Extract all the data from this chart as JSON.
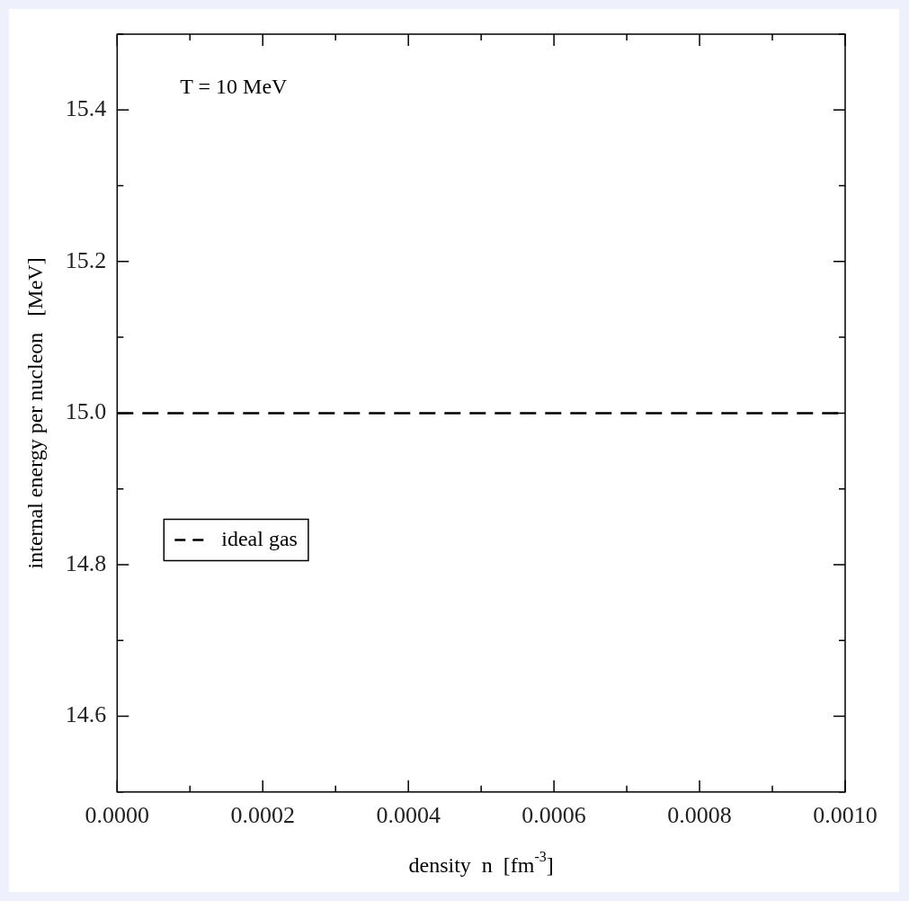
{
  "chart_data": {
    "type": "line",
    "xlabel": "density  n  [fm$^{-3}$]",
    "ylabel": "internal energy per nucleon   [MeV]",
    "annotations": [
      "T = 10 MeV"
    ],
    "series": [
      {
        "name": "ideal gas",
        "color": "#000000",
        "x": [
          0,
          0.001
        ],
        "values": [
          15,
          15
        ],
        "line_style": "dashed",
        "marker": "none"
      }
    ],
    "xlim": [
      0,
      0.001
    ],
    "ylim": [
      14.5,
      15.5
    ],
    "xticks": [
      {
        "value": 0,
        "label": "0.0000"
      },
      {
        "value": 0.0001,
        "label": null
      },
      {
        "value": 0.0002,
        "label": "0.0002"
      },
      {
        "value": 0.0003,
        "label": null
      },
      {
        "value": 0.0004,
        "label": "0.0004"
      },
      {
        "value": 0.0005,
        "label": null
      },
      {
        "value": 0.0006,
        "label": "0.0006"
      },
      {
        "value": 0.0007,
        "label": null
      },
      {
        "value": 0.0008,
        "label": "0.0008"
      },
      {
        "value": 0.0009,
        "label": null
      },
      {
        "value": 0.001,
        "label": "0.0010"
      }
    ],
    "yticks": [
      {
        "value": 14.5,
        "label": null
      },
      14.6,
      {
        "value": 14.7,
        "label": null
      },
      14.8,
      {
        "value": 14.9,
        "label": null
      },
      {
        "value": 15,
        "label": "15.0"
      },
      {
        "value": 15.1,
        "label": null
      },
      15.2,
      {
        "value": 15.3,
        "label": null
      },
      15.4,
      {
        "value": 15.5,
        "label": null
      }
    ],
    "grid": false,
    "legend": "left"
  }
}
